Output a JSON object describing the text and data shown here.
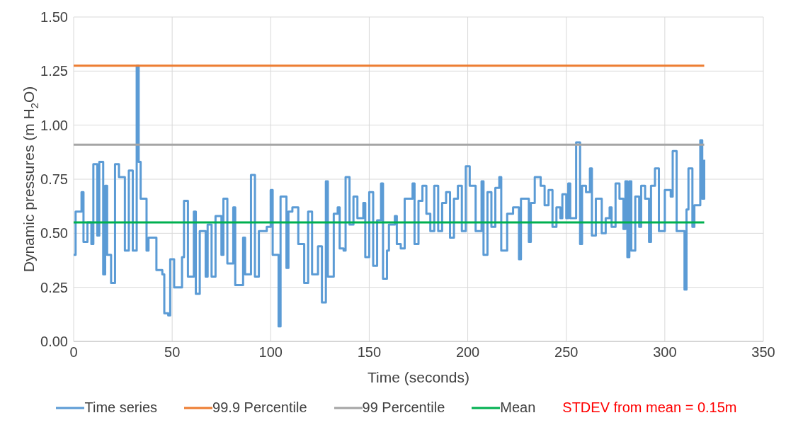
{
  "chart_data": {
    "type": "line",
    "xlabel": "Time (seconds)",
    "ylabel": "Dynamic pressures (m H$_{2}$O)",
    "xlim": [
      0,
      350
    ],
    "xticks": [
      0,
      50,
      100,
      150,
      200,
      250,
      300,
      350
    ],
    "ylim": [
      0,
      1.5
    ],
    "yticks": [
      {
        "value": 0,
        "label": "0.00"
      },
      {
        "value": 0.25,
        "label": "0.25"
      },
      {
        "value": 0.5,
        "label": "0.50"
      },
      {
        "value": 0.75,
        "label": "0.75"
      },
      {
        "value": 1,
        "label": "1.00"
      },
      {
        "value": 1.25,
        "label": "1.25"
      },
      {
        "value": 1.5,
        "label": "1.50"
      }
    ],
    "grid": true,
    "legend": "bottom",
    "marker": "none",
    "line_style": "solid",
    "annotations": [
      "STDEV from mean = 0.15m"
    ],
    "series": [
      {
        "name": "Time series",
        "type": "step",
        "color": "#5b9bd5",
        "x": [
          0,
          1,
          4,
          5,
          7,
          9,
          10,
          12,
          13,
          15,
          16,
          17,
          19,
          21,
          23,
          26,
          28,
          30,
          32,
          33,
          34,
          37,
          38,
          42,
          45,
          46,
          48,
          49,
          51,
          55,
          56,
          58,
          61,
          62,
          64,
          67,
          68,
          70,
          72,
          75,
          76,
          78,
          81,
          82,
          86,
          87,
          90,
          92,
          94,
          98,
          100,
          101,
          104,
          105,
          108,
          109,
          111,
          114,
          117,
          119,
          121,
          124,
          126,
          128,
          129,
          132,
          134,
          135,
          137,
          138,
          140,
          142,
          144,
          147,
          148,
          150,
          152,
          154,
          156,
          157,
          159,
          160,
          163,
          164,
          166,
          168,
          172,
          173,
          175,
          177,
          179,
          181,
          183,
          185,
          187,
          189,
          191,
          193,
          195,
          197,
          199,
          201,
          204,
          207,
          208,
          210,
          212,
          214,
          216,
          217,
          220,
          223,
          226,
          227,
          231,
          232,
          234,
          237,
          239,
          241,
          243,
          245,
          247,
          248,
          250,
          251,
          252,
          255,
          257,
          258,
          260,
          262,
          263,
          265,
          268,
          270,
          272,
          273,
          275,
          277,
          279,
          280,
          281,
          282,
          283,
          285,
          287,
          288,
          290,
          292,
          293,
          295,
          297,
          300,
          303,
          304,
          306,
          308,
          310,
          311,
          312,
          314,
          315,
          317,
          318,
          319,
          320
        ],
        "values": [
          0.4,
          0.6,
          0.69,
          0.46,
          0.55,
          0.45,
          0.82,
          0.49,
          0.83,
          0.31,
          0.72,
          0.4,
          0.27,
          0.82,
          0.76,
          0.42,
          0.79,
          0.42,
          1.275,
          0.83,
          0.66,
          0.42,
          0.48,
          0.33,
          0.31,
          0.13,
          0.12,
          0.38,
          0.25,
          0.39,
          0.65,
          0.3,
          0.6,
          0.22,
          0.51,
          0.3,
          0.54,
          0.3,
          0.58,
          0.4,
          0.66,
          0.36,
          0.62,
          0.26,
          0.48,
          0.31,
          0.77,
          0.3,
          0.51,
          0.53,
          0.7,
          0.4,
          0.07,
          0.67,
          0.34,
          0.6,
          0.62,
          0.45,
          0.27,
          0.6,
          0.31,
          0.44,
          0.18,
          0.74,
          0.3,
          0.59,
          0.62,
          0.43,
          0.42,
          0.76,
          0.54,
          0.67,
          0.57,
          0.64,
          0.39,
          0.69,
          0.35,
          0.56,
          0.73,
          0.29,
          0.42,
          0.54,
          0.58,
          0.45,
          0.43,
          0.66,
          0.73,
          0.45,
          0.65,
          0.72,
          0.59,
          0.51,
          0.72,
          0.51,
          0.64,
          0.69,
          0.48,
          0.66,
          0.72,
          0.51,
          0.81,
          0.72,
          0.51,
          0.74,
          0.4,
          0.69,
          0.53,
          0.71,
          0.76,
          0.42,
          0.59,
          0.62,
          0.38,
          0.66,
          0.46,
          0.64,
          0.76,
          0.72,
          0.63,
          0.7,
          0.53,
          0.62,
          0.57,
          0.68,
          0.57,
          0.73,
          0.57,
          0.92,
          0.45,
          0.72,
          0.69,
          0.8,
          0.49,
          0.66,
          0.5,
          0.57,
          0.62,
          0.53,
          0.73,
          0.66,
          0.52,
          0.74,
          0.39,
          0.74,
          0.42,
          0.67,
          0.53,
          0.72,
          0.66,
          0.46,
          0.72,
          0.8,
          0.51,
          0.7,
          0.67,
          0.88,
          0.51,
          0.51,
          0.24,
          0.61,
          0.8,
          0.53,
          0.63,
          0.63,
          0.93,
          0.66,
          0.84
        ]
      },
      {
        "name": "99.9 Percentile",
        "type": "line",
        "color": "#ed7d31",
        "x": [
          0,
          320
        ],
        "values": [
          1.275,
          1.275
        ]
      },
      {
        "name": "99 Percentile",
        "type": "line",
        "color": "#a5a5a5",
        "x": [
          0,
          320
        ],
        "values": [
          0.91,
          0.91
        ]
      },
      {
        "name": "Mean",
        "type": "line",
        "color": "#00b050",
        "x": [
          0,
          320
        ],
        "values": [
          0.55,
          0.55
        ]
      }
    ]
  }
}
